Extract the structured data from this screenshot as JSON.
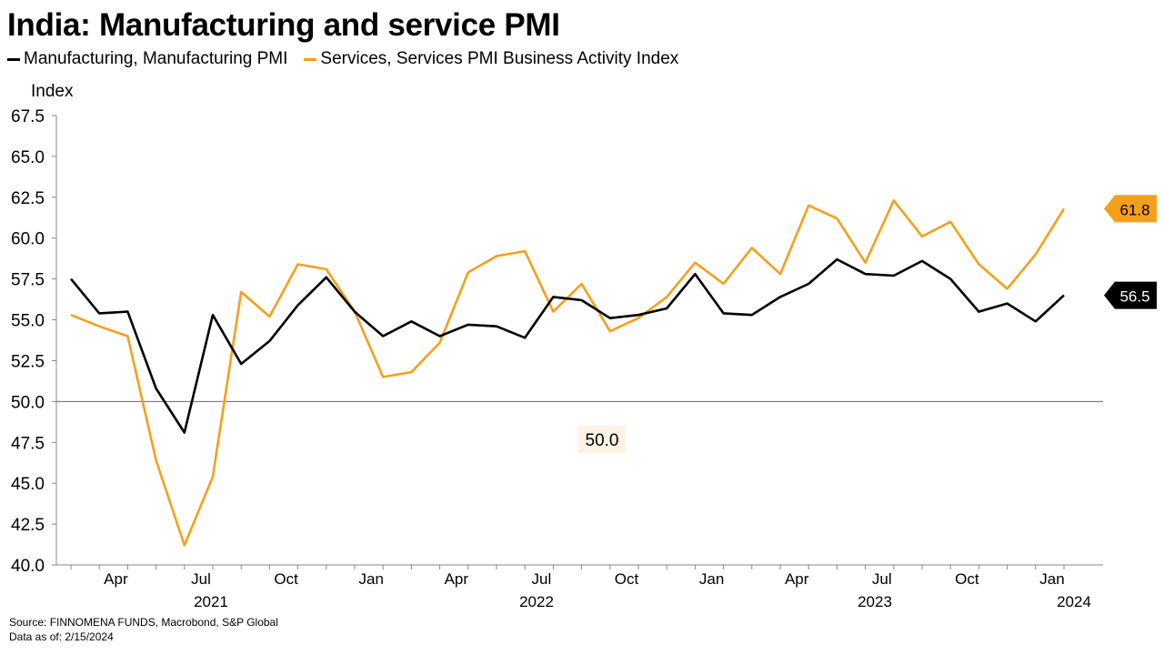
{
  "title": "India: Manufacturing and service PMI",
  "legend": [
    {
      "label": "Manufacturing, Manufacturing PMI",
      "color": "#000000"
    },
    {
      "label": "Services, Services PMI Business Activity Index",
      "color": "#F5A01A"
    }
  ],
  "source": "Source: FINNOMENA FUNDS, Macrobond, S&P Global",
  "data_as_of": "Data as of: 2/15/2024",
  "chart_data": {
    "type": "line",
    "title": "India: Manufacturing and service PMI",
    "ylabel": "Index",
    "xlabel": "",
    "ylim": [
      40.0,
      67.5
    ],
    "yticks": [
      "40.0",
      "42.5",
      "45.0",
      "47.5",
      "50.0",
      "52.5",
      "55.0",
      "57.5",
      "60.0",
      "62.5",
      "65.0",
      "67.5"
    ],
    "xticks": [
      "Apr",
      "Jul",
      "Oct",
      "Jan",
      "Apr",
      "Jul",
      "Oct",
      "Jan",
      "Apr",
      "Jul",
      "Oct",
      "Jan"
    ],
    "year_labels": [
      "2021",
      "2022",
      "2023",
      "2024"
    ],
    "x": [
      "2021-02",
      "2021-03",
      "2021-04",
      "2021-05",
      "2021-06",
      "2021-07",
      "2021-08",
      "2021-09",
      "2021-10",
      "2021-11",
      "2021-12",
      "2022-01",
      "2022-02",
      "2022-03",
      "2022-04",
      "2022-05",
      "2022-06",
      "2022-07",
      "2022-08",
      "2022-09",
      "2022-10",
      "2022-11",
      "2022-12",
      "2023-01",
      "2023-02",
      "2023-03",
      "2023-04",
      "2023-05",
      "2023-06",
      "2023-07",
      "2023-08",
      "2023-09",
      "2023-10",
      "2023-11",
      "2023-12",
      "2024-01"
    ],
    "reference_line": {
      "value": 50.0,
      "label": "50.0"
    },
    "series": [
      {
        "name": "Manufacturing, Manufacturing PMI",
        "color": "#000000",
        "last_label": "56.5",
        "values": [
          57.5,
          55.4,
          55.5,
          50.8,
          48.1,
          55.3,
          52.3,
          53.7,
          55.9,
          57.6,
          55.5,
          54.0,
          54.9,
          54.0,
          54.7,
          54.6,
          53.9,
          56.4,
          56.2,
          55.1,
          55.3,
          55.7,
          57.8,
          55.4,
          55.3,
          56.4,
          57.2,
          58.7,
          57.8,
          57.7,
          58.6,
          57.5,
          55.5,
          56.0,
          54.9,
          56.5
        ]
      },
      {
        "name": "Services, Services PMI Business Activity Index",
        "color": "#F5A01A",
        "last_label": "61.8",
        "values": [
          55.3,
          54.6,
          54.0,
          46.4,
          41.2,
          45.4,
          56.7,
          55.2,
          58.4,
          58.1,
          55.5,
          51.5,
          51.8,
          53.6,
          57.9,
          58.9,
          59.2,
          55.5,
          57.2,
          54.3,
          55.1,
          56.4,
          58.5,
          57.2,
          59.4,
          57.8,
          62.0,
          61.2,
          58.5,
          62.3,
          60.1,
          61.0,
          58.4,
          56.9,
          59.0,
          61.8
        ]
      }
    ]
  }
}
